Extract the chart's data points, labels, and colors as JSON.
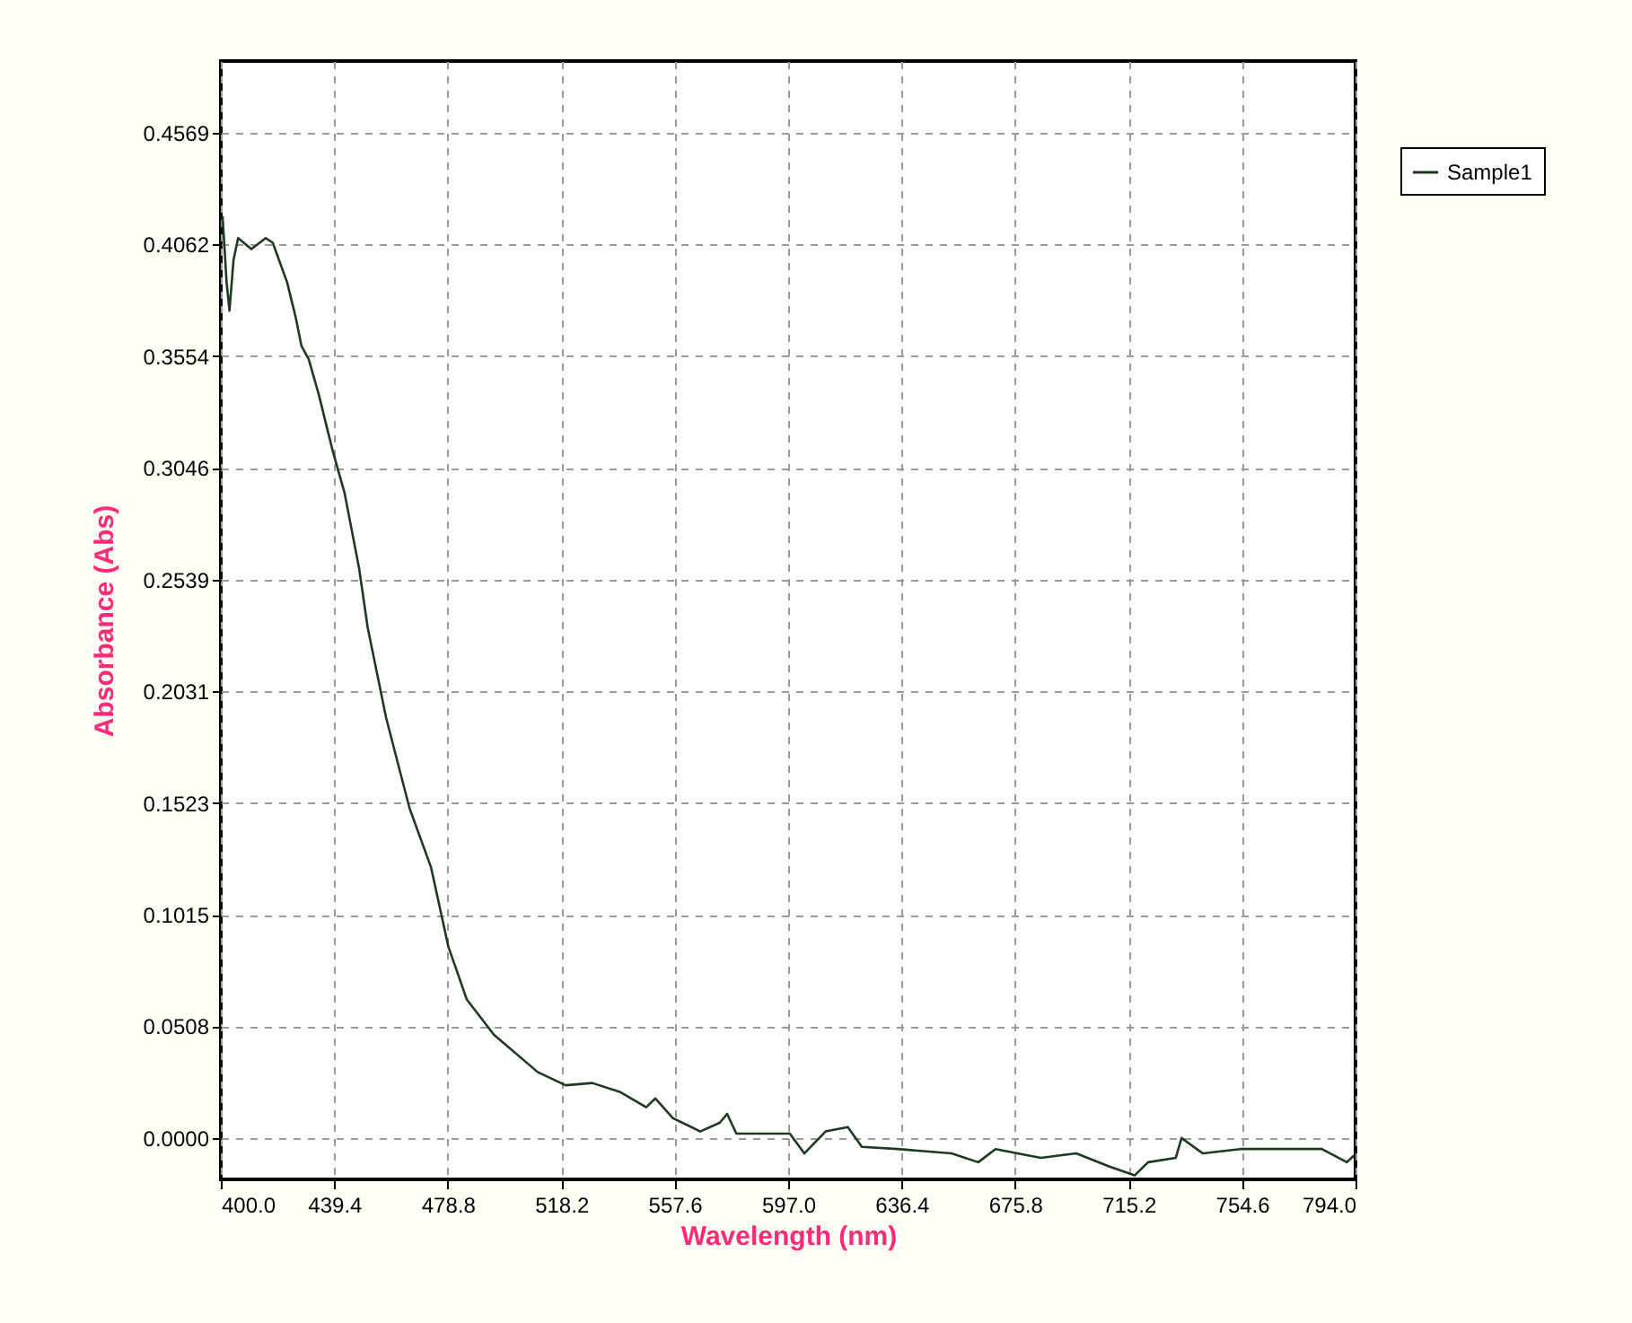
{
  "chart_data": {
    "type": "line",
    "xlabel": "Wavelength (nm)",
    "ylabel": "Absorbance (Abs)",
    "x": [
      400.6,
      402,
      403,
      404.4,
      406,
      410.6,
      415.6,
      418,
      423,
      426,
      428,
      430.5,
      434,
      438.7,
      443,
      448,
      451,
      457.4,
      465.5,
      473,
      479,
      485.4,
      494.8,
      510,
      519.7,
      529,
      538.5,
      547.7,
      550.9,
      557,
      566.5,
      573.3,
      575.8,
      579,
      597.6,
      602.6,
      610,
      617.7,
      622.6,
      635,
      653.7,
      663,
      669,
      684.7,
      697,
      708.6,
      717.3,
      722,
      731.6,
      733.6,
      741,
      754,
      766,
      782.3,
      791,
      793.4
    ],
    "series": [
      {
        "name": "Sample1",
        "color": "#1e3a1e",
        "values": [
          0.419,
          0.389,
          0.376,
          0.399,
          0.409,
          0.404,
          0.409,
          0.407,
          0.389,
          0.373,
          0.36,
          0.354,
          0.338,
          0.313,
          0.293,
          0.259,
          0.232,
          0.191,
          0.15,
          0.123,
          0.087,
          0.063,
          0.047,
          0.03,
          0.024,
          0.025,
          0.021,
          0.014,
          0.018,
          0.009,
          0.003,
          0.007,
          0.011,
          0.002,
          0.002,
          -0.007,
          0.003,
          0.005,
          -0.004,
          -0.005,
          -0.007,
          -0.011,
          -0.005,
          -0.009,
          -0.007,
          -0.013,
          -0.017,
          -0.011,
          -0.009,
          0.0,
          -0.007,
          -0.005,
          -0.005,
          -0.005,
          -0.011,
          -0.008
        ]
      }
    ],
    "xlim": [
      400,
      794
    ],
    "ylim": [
      -0.0188,
      0.4895
    ],
    "xticks": [
      {
        "value": 400,
        "label": "400.0"
      },
      439.4,
      478.8,
      518.2,
      557.6,
      {
        "value": 597,
        "label": "597.0"
      },
      636.4,
      675.8,
      715.2,
      754.6,
      {
        "value": 794,
        "label": "794.0"
      }
    ],
    "yticks": [
      {
        "value": 0,
        "label": "0.0000"
      },
      0.0508,
      0.1015,
      0.1523,
      0.2031,
      0.2539,
      0.3046,
      0.3554,
      0.4062,
      0.4569
    ],
    "grid": true,
    "legend": "top right",
    "line_style": "solid",
    "marker": "none"
  }
}
